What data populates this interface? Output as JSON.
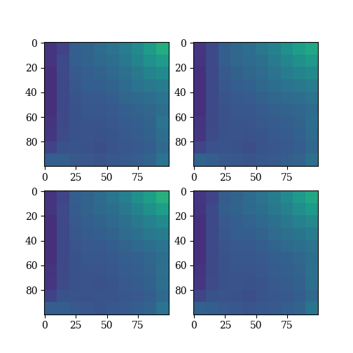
{
  "chart_data": [
    {
      "type": "heatmap",
      "color": "viridis",
      "color_range": [
        0,
        1
      ],
      "xlim": [
        -0.5,
        99.5
      ],
      "ylim": [
        99.5,
        -0.5
      ],
      "xticks": [
        0,
        25,
        50,
        75
      ],
      "yticks": [
        0,
        20,
        40,
        60,
        80
      ],
      "cells": [
        [
          0.15,
          0.2,
          0.3,
          0.32,
          0.35,
          0.38,
          0.42,
          0.48,
          0.55,
          0.62
        ],
        [
          0.15,
          0.22,
          0.3,
          0.32,
          0.34,
          0.36,
          0.4,
          0.45,
          0.5,
          0.55
        ],
        [
          0.14,
          0.22,
          0.28,
          0.3,
          0.32,
          0.34,
          0.37,
          0.4,
          0.45,
          0.48
        ],
        [
          0.14,
          0.22,
          0.27,
          0.3,
          0.3,
          0.32,
          0.35,
          0.38,
          0.4,
          0.42
        ],
        [
          0.14,
          0.22,
          0.26,
          0.28,
          0.28,
          0.3,
          0.33,
          0.34,
          0.36,
          0.38
        ],
        [
          0.14,
          0.22,
          0.25,
          0.27,
          0.27,
          0.28,
          0.3,
          0.32,
          0.33,
          0.36
        ],
        [
          0.15,
          0.22,
          0.25,
          0.26,
          0.26,
          0.27,
          0.29,
          0.3,
          0.32,
          0.38
        ],
        [
          0.16,
          0.23,
          0.25,
          0.26,
          0.25,
          0.26,
          0.28,
          0.29,
          0.31,
          0.36
        ],
        [
          0.2,
          0.25,
          0.26,
          0.25,
          0.24,
          0.26,
          0.27,
          0.28,
          0.3,
          0.34
        ],
        [
          0.3,
          0.3,
          0.28,
          0.27,
          0.26,
          0.27,
          0.28,
          0.3,
          0.32,
          0.38
        ]
      ]
    },
    {
      "type": "heatmap",
      "color": "viridis",
      "color_range": [
        0,
        1
      ],
      "xlim": [
        -0.5,
        99.5
      ],
      "ylim": [
        99.5,
        -0.5
      ],
      "xticks": [
        0,
        25,
        50,
        75
      ],
      "yticks": [
        0,
        20,
        40,
        60,
        80
      ],
      "cells": [
        [
          0.16,
          0.22,
          0.3,
          0.33,
          0.36,
          0.4,
          0.44,
          0.5,
          0.56,
          0.6
        ],
        [
          0.15,
          0.22,
          0.3,
          0.33,
          0.35,
          0.37,
          0.41,
          0.46,
          0.5,
          0.54
        ],
        [
          0.14,
          0.22,
          0.28,
          0.31,
          0.33,
          0.35,
          0.38,
          0.42,
          0.45,
          0.47
        ],
        [
          0.14,
          0.22,
          0.27,
          0.3,
          0.31,
          0.33,
          0.36,
          0.38,
          0.4,
          0.42
        ],
        [
          0.14,
          0.22,
          0.26,
          0.28,
          0.29,
          0.31,
          0.33,
          0.35,
          0.36,
          0.38
        ],
        [
          0.14,
          0.22,
          0.25,
          0.27,
          0.27,
          0.29,
          0.31,
          0.32,
          0.33,
          0.35
        ],
        [
          0.15,
          0.22,
          0.25,
          0.26,
          0.26,
          0.28,
          0.29,
          0.3,
          0.32,
          0.36
        ],
        [
          0.16,
          0.23,
          0.25,
          0.26,
          0.25,
          0.26,
          0.28,
          0.29,
          0.31,
          0.35
        ],
        [
          0.21,
          0.25,
          0.26,
          0.25,
          0.24,
          0.26,
          0.27,
          0.28,
          0.3,
          0.33
        ],
        [
          0.32,
          0.3,
          0.28,
          0.27,
          0.26,
          0.27,
          0.28,
          0.3,
          0.32,
          0.37
        ]
      ]
    },
    {
      "type": "heatmap",
      "color": "viridis",
      "color_range": [
        0,
        1
      ],
      "xlim": [
        -0.5,
        99.5
      ],
      "ylim": [
        99.5,
        -0.5
      ],
      "xticks": [
        0,
        25,
        50,
        75
      ],
      "yticks": [
        0,
        20,
        40,
        60,
        80
      ],
      "cells": [
        [
          0.15,
          0.21,
          0.3,
          0.32,
          0.35,
          0.39,
          0.43,
          0.5,
          0.56,
          0.63
        ],
        [
          0.15,
          0.22,
          0.29,
          0.32,
          0.34,
          0.36,
          0.4,
          0.45,
          0.5,
          0.56
        ],
        [
          0.14,
          0.22,
          0.28,
          0.3,
          0.32,
          0.34,
          0.37,
          0.4,
          0.44,
          0.48
        ],
        [
          0.14,
          0.22,
          0.27,
          0.29,
          0.3,
          0.32,
          0.35,
          0.37,
          0.4,
          0.42
        ],
        [
          0.14,
          0.22,
          0.26,
          0.28,
          0.28,
          0.3,
          0.32,
          0.34,
          0.36,
          0.38
        ],
        [
          0.14,
          0.22,
          0.25,
          0.27,
          0.27,
          0.28,
          0.3,
          0.31,
          0.33,
          0.36
        ],
        [
          0.15,
          0.22,
          0.25,
          0.26,
          0.26,
          0.27,
          0.29,
          0.3,
          0.32,
          0.37
        ],
        [
          0.16,
          0.23,
          0.25,
          0.26,
          0.25,
          0.26,
          0.28,
          0.29,
          0.31,
          0.36
        ],
        [
          0.2,
          0.25,
          0.26,
          0.25,
          0.26,
          0.26,
          0.27,
          0.28,
          0.3,
          0.34
        ],
        [
          0.3,
          0.3,
          0.28,
          0.27,
          0.26,
          0.27,
          0.28,
          0.3,
          0.32,
          0.38
        ]
      ]
    },
    {
      "type": "heatmap",
      "color": "viridis",
      "color_range": [
        0,
        1
      ],
      "xlim": [
        -0.5,
        99.5
      ],
      "ylim": [
        99.5,
        -0.5
      ],
      "xticks": [
        0,
        25,
        50,
        75
      ],
      "yticks": [
        0,
        20,
        40,
        60,
        80
      ],
      "cells": [
        [
          0.16,
          0.2,
          0.29,
          0.32,
          0.35,
          0.38,
          0.42,
          0.48,
          0.54,
          0.6
        ],
        [
          0.15,
          0.22,
          0.3,
          0.32,
          0.34,
          0.36,
          0.4,
          0.44,
          0.49,
          0.54
        ],
        [
          0.14,
          0.22,
          0.28,
          0.3,
          0.32,
          0.34,
          0.37,
          0.4,
          0.44,
          0.47
        ],
        [
          0.14,
          0.22,
          0.27,
          0.3,
          0.3,
          0.32,
          0.35,
          0.37,
          0.39,
          0.42
        ],
        [
          0.14,
          0.22,
          0.26,
          0.28,
          0.28,
          0.3,
          0.32,
          0.34,
          0.36,
          0.38
        ],
        [
          0.14,
          0.22,
          0.25,
          0.27,
          0.27,
          0.28,
          0.3,
          0.31,
          0.33,
          0.36
        ],
        [
          0.15,
          0.22,
          0.25,
          0.26,
          0.26,
          0.27,
          0.29,
          0.3,
          0.32,
          0.37
        ],
        [
          0.16,
          0.23,
          0.25,
          0.26,
          0.25,
          0.26,
          0.28,
          0.29,
          0.31,
          0.36
        ],
        [
          0.21,
          0.25,
          0.26,
          0.25,
          0.24,
          0.26,
          0.27,
          0.28,
          0.3,
          0.34
        ],
        [
          0.31,
          0.3,
          0.28,
          0.27,
          0.26,
          0.27,
          0.28,
          0.3,
          0.32,
          0.39
        ]
      ]
    }
  ]
}
